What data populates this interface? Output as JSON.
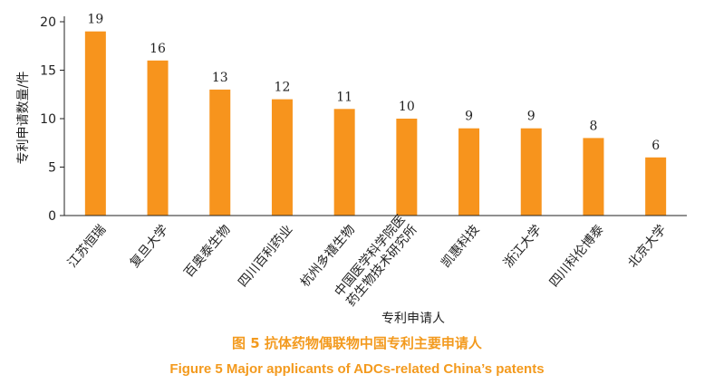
{
  "chart_data": {
    "type": "bar",
    "categories": [
      "江苏恒瑞",
      "复旦大学",
      "百奥泰生物",
      "四川百利药业",
      "杭州多禧生物",
      [
        "中国医学科学院医",
        "药生物技术研究所"
      ],
      "凯惠科技",
      "浙江大学",
      "四川科伦博泰",
      "北京大学"
    ],
    "values": [
      19,
      16,
      13,
      12,
      11,
      10,
      9,
      9,
      8,
      6
    ],
    "data_labels": [
      "19",
      "16",
      "13",
      "12",
      "11",
      "10",
      "9",
      "9",
      "8",
      "6"
    ],
    "xlabel": "专利申请人",
    "ylabel": "专利申请数量/件",
    "ylim": [
      0,
      20
    ],
    "yticks": [
      0,
      5,
      10,
      15,
      20
    ],
    "grid": false,
    "bar_color": "#f7941d"
  },
  "caption": {
    "cn": "图 5  抗体药物偶联物中国专利主要申请人",
    "en": "Figure 5  Major applicants of ADCs-related China’s patents",
    "color": "#f39a1e"
  }
}
